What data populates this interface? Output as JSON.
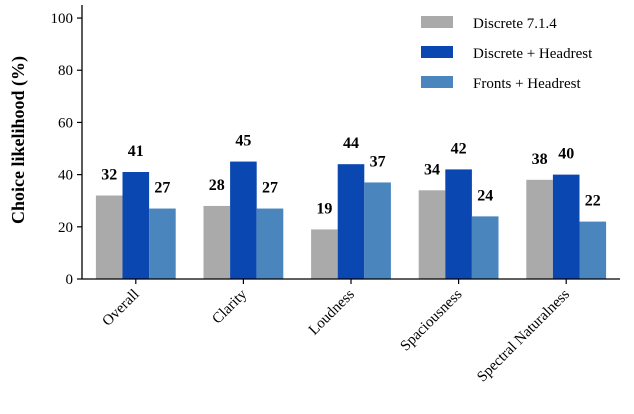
{
  "chart_data": {
    "type": "bar",
    "title": "",
    "xlabel": "",
    "ylabel": "Choice likelihood (%)",
    "ylim": [
      0,
      105
    ],
    "yticks": [
      0,
      20,
      40,
      60,
      80,
      100
    ],
    "grid": false,
    "legend_position": "top-right",
    "categories": [
      "Overall",
      "Clarity",
      "Loudness",
      "Spaciousness",
      "Spectral Naturalness"
    ],
    "series": [
      {
        "name": "Discrete 7.1.4",
        "color": "#aaaaaa",
        "values": [
          32,
          28,
          19,
          34,
          38
        ],
        "labels": [
          "32",
          "28",
          "19",
          "34",
          "38"
        ]
      },
      {
        "name": "Discrete + Headrest",
        "color": "#0a47b0",
        "values": [
          41,
          45,
          44,
          42,
          40
        ],
        "labels": [
          "41",
          "45",
          "44",
          "42",
          "40"
        ]
      },
      {
        "name": "Fronts + Headrest",
        "color": "#4a86bd",
        "values": [
          27,
          27,
          37,
          24,
          22
        ],
        "labels": [
          "27",
          "27",
          "37",
          "24",
          "22"
        ]
      }
    ]
  }
}
